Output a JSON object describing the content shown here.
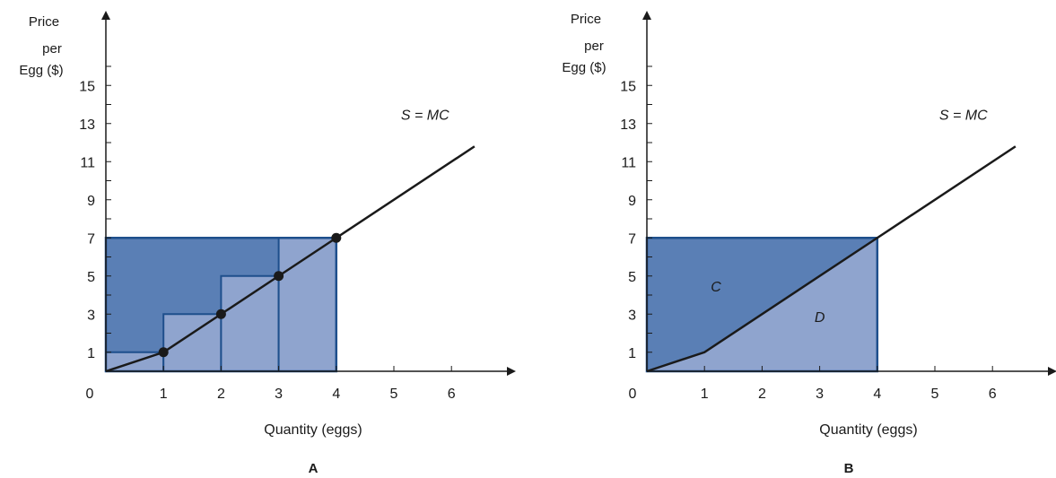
{
  "figure": {
    "colors": {
      "consumer_region": "#5a7fb5",
      "producer_region": "#8fa4ce",
      "region_edge": "#1e4f8c",
      "axis": "#1a1a1a",
      "supply_line": "#1a1a1a"
    }
  },
  "chart_data": [
    {
      "type": "line",
      "panel_label": "A",
      "ylabel_lines": [
        "Price",
        "per",
        "Egg ($)"
      ],
      "xlabel": "Quantity (eggs)",
      "origin_label": "0",
      "x_ticks": [
        1,
        2,
        3,
        4,
        5,
        6
      ],
      "y_ticks": [
        1,
        3,
        5,
        7,
        9,
        11,
        13,
        15
      ],
      "xlim": [
        0,
        7
      ],
      "ylim": [
        0,
        17
      ],
      "supply_curve": {
        "label": "S = MC",
        "points": [
          [
            0,
            0
          ],
          [
            1,
            1
          ],
          [
            2,
            3
          ],
          [
            3,
            5
          ],
          [
            4,
            7
          ],
          [
            6.4,
            11.8
          ]
        ]
      },
      "marked_points": [
        [
          1,
          1
        ],
        [
          2,
          3
        ],
        [
          3,
          5
        ],
        [
          4,
          7
        ]
      ],
      "price": 7,
      "quantity": 4,
      "unit_rectangles": [
        {
          "x0": 0,
          "x1": 1,
          "height": 1
        },
        {
          "x0": 1,
          "x1": 2,
          "height": 3
        },
        {
          "x0": 2,
          "x1": 3,
          "height": 5
        },
        {
          "x0": 3,
          "x1": 4,
          "height": 7
        }
      ]
    },
    {
      "type": "line",
      "panel_label": "B",
      "ylabel_lines": [
        "Price",
        "per",
        "Egg ($)"
      ],
      "xlabel": "Quantity (eggs)",
      "origin_label": "0",
      "x_ticks": [
        1,
        2,
        3,
        4,
        5,
        6
      ],
      "y_ticks": [
        1,
        3,
        5,
        7,
        9,
        11,
        13,
        15
      ],
      "xlim": [
        0,
        7
      ],
      "ylim": [
        0,
        17
      ],
      "supply_curve": {
        "label": "S = MC",
        "points": [
          [
            0,
            0
          ],
          [
            1,
            1
          ],
          [
            4,
            7
          ],
          [
            6.4,
            11.8
          ]
        ]
      },
      "price": 7,
      "quantity": 4,
      "regions": [
        {
          "label": "C",
          "at": [
            1.2,
            4.2
          ]
        },
        {
          "label": "D",
          "at": [
            3.0,
            2.6
          ]
        }
      ]
    }
  ]
}
